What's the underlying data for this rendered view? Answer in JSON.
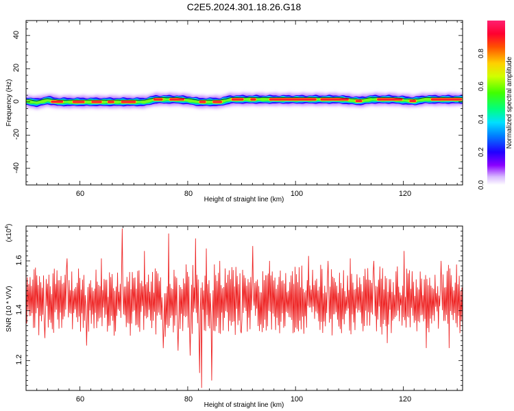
{
  "title": "C2E5.2024.301.18.26.G18",
  "chart_data": [
    {
      "type": "heatmap",
      "xlabel": "Height of straight line (km)",
      "ylabel": "Frequency (Hz)",
      "xlim": [
        50,
        131
      ],
      "ylim": [
        -50,
        49
      ],
      "x_ticks": [
        "60",
        "80",
        "100",
        "120"
      ],
      "y_ticks": [
        "40",
        "20",
        "0",
        "-20",
        "-40"
      ],
      "description_band": {
        "center_freq_hz": [
          [
            50,
            0.5
          ],
          [
            52,
            -0.5
          ],
          [
            54,
            1.0
          ],
          [
            56,
            0.0
          ],
          [
            60,
            0.0
          ],
          [
            64,
            0.0
          ],
          [
            68,
            0.0
          ],
          [
            72,
            0.0
          ],
          [
            74,
            1.5
          ],
          [
            78,
            1.5
          ],
          [
            80,
            1.0
          ],
          [
            82,
            0.0
          ],
          [
            86,
            0.0
          ],
          [
            88,
            1.5
          ],
          [
            92,
            1.5
          ],
          [
            94,
            1.5
          ],
          [
            100,
            1.5
          ],
          [
            104,
            1.5
          ],
          [
            108,
            1.5
          ],
          [
            112,
            0.5
          ],
          [
            114,
            1.5
          ],
          [
            118,
            1.5
          ],
          [
            122,
            0.5
          ],
          [
            124,
            1.5
          ],
          [
            131,
            1.5
          ]
        ],
        "half_width_hz": 2.5
      },
      "colorbar": {
        "label": "Normalized spectral amplitude",
        "ticks": [
          "0.0",
          "0.2",
          "0.4",
          "0.6",
          "0.8"
        ],
        "range": [
          0,
          1
        ]
      }
    },
    {
      "type": "line",
      "xlabel": "Height of straight line (km)",
      "ylabel": "SNR (10 * V/V)",
      "scale_note": "(x10",
      "scale_exp": "4",
      "scale_close": ")",
      "xlim": [
        50,
        131
      ],
      "ylim": [
        1.08,
        1.74
      ],
      "x_ticks": [
        "60",
        "80",
        "100",
        "120"
      ],
      "y_ticks": [
        "1.6",
        "1.4",
        "1.2"
      ],
      "series": [
        {
          "color": "#ee2222",
          "x_start": 50,
          "x_end": 131,
          "point_count": 650,
          "mean": 1.44,
          "spikes": [
            [
              53.5,
              1.29
            ],
            [
              55.0,
              1.55
            ],
            [
              57.6,
              1.61
            ],
            [
              61.2,
              1.26
            ],
            [
              64.0,
              1.61
            ],
            [
              66.4,
              1.3
            ],
            [
              67.8,
              1.73
            ],
            [
              69.4,
              1.3
            ],
            [
              72.0,
              1.64
            ],
            [
              75.5,
              1.25
            ],
            [
              76.4,
              1.71
            ],
            [
              78.2,
              1.24
            ],
            [
              80.4,
              1.22
            ],
            [
              81.5,
              1.69
            ],
            [
              82.2,
              1.15
            ],
            [
              82.6,
              1.09
            ],
            [
              83.5,
              1.65
            ],
            [
              84.5,
              1.12
            ],
            [
              86.0,
              1.6
            ],
            [
              90.0,
              1.31
            ],
            [
              92.0,
              1.66
            ],
            [
              95.2,
              1.6
            ],
            [
              99.5,
              1.31
            ],
            [
              102.4,
              1.62
            ],
            [
              106.0,
              1.6
            ],
            [
              108.5,
              1.31
            ],
            [
              110.2,
              1.61
            ],
            [
              114.5,
              1.6
            ],
            [
              117.0,
              1.27
            ],
            [
              120.2,
              1.64
            ],
            [
              124.2,
              1.25
            ],
            [
              127.0,
              1.6
            ],
            [
              128.5,
              1.25
            ],
            [
              130.5,
              1.31
            ]
          ]
        }
      ]
    }
  ]
}
